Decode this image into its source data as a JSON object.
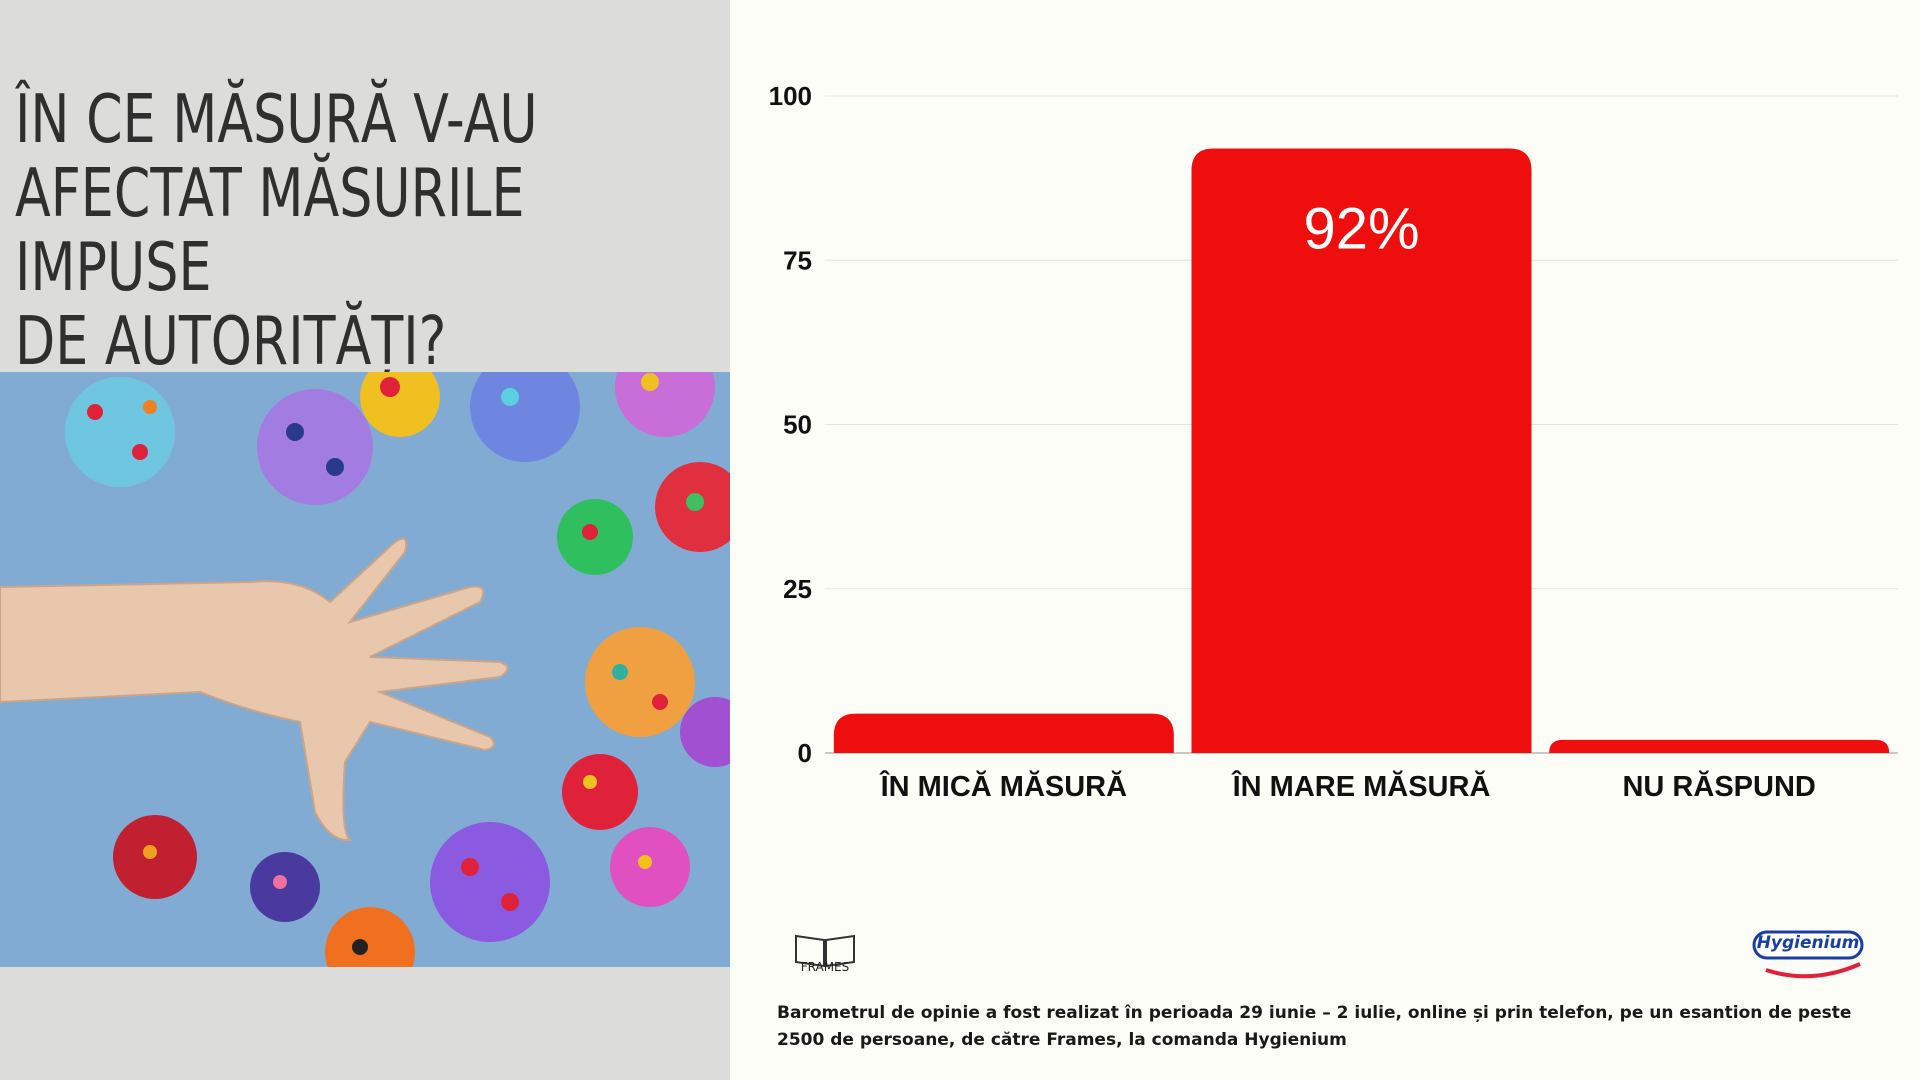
{
  "headline": " ÎN CE MĂSURĂ V-AU\nAFECTAT MĂSURILE IMPUSE\nDE AUTORITĂȚI?",
  "photo": {
    "icon": "virus-models-and-hand-photo"
  },
  "colors": {
    "bar": "#ee0e0e",
    "left_panel": "#dcdcdb",
    "background": "#fdfdf8",
    "photo_bg": "#7fa9d3"
  },
  "chart_data": {
    "type": "bar",
    "categories": [
      "ÎN MICĂ MĂSURĂ",
      "ÎN MARE MĂSURĂ",
      "NU RĂSPUND"
    ],
    "values": [
      6,
      92,
      2
    ],
    "data_labels": [
      "",
      "92%",
      ""
    ],
    "ylim": [
      0,
      100
    ],
    "yticks": [
      0,
      25,
      50,
      75,
      100
    ],
    "grid": true,
    "legend": "none"
  },
  "logos": {
    "frames": "FRAMES",
    "hygienium": "Hygienium"
  },
  "footnote": "Barometrul de opinie a fost realizat în perioada 29 iunie – 2 iulie, online și prin telefon, pe un esantion de peste 2500 de persoane, de către Frames, la comanda Hygienium"
}
